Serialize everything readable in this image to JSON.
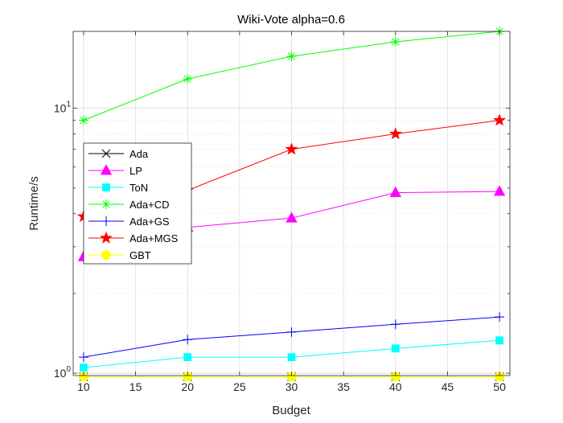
{
  "chart_data": {
    "type": "line",
    "title": "Wiki-Vote alpha=0.6",
    "xlabel": "Budget",
    "ylabel": "Runtime/s",
    "yscale": "log",
    "xlim": [
      9,
      51
    ],
    "ylim": [
      0.98,
      19.5
    ],
    "x": [
      10,
      20,
      30,
      40,
      50
    ],
    "xticks": [
      10,
      15,
      20,
      25,
      30,
      35,
      40,
      45,
      50
    ],
    "xtick_labels": [
      "10",
      "15",
      "20",
      "25",
      "30",
      "35",
      "40",
      "45",
      "50"
    ],
    "yticks": [
      1,
      10
    ],
    "ytick_base": "10",
    "ytick_exponents": [
      "0",
      "1"
    ],
    "grid": true,
    "legend_position": "left",
    "series": [
      {
        "name": "Ada",
        "color": "#000000",
        "marker": "x",
        "values": [
          0.97,
          0.97,
          0.97,
          0.97,
          0.97
        ]
      },
      {
        "name": "LP",
        "color": "#ff00ff",
        "marker": "triangle",
        "values": [
          2.75,
          3.55,
          3.85,
          4.8,
          4.85
        ]
      },
      {
        "name": "ToN",
        "color": "#00ffff",
        "marker": "square",
        "values": [
          1.05,
          1.15,
          1.15,
          1.24,
          1.33
        ]
      },
      {
        "name": "Ada+CD",
        "color": "#00ff00",
        "marker": "asterisk",
        "values": [
          9.0,
          12.9,
          15.7,
          17.8,
          19.5
        ]
      },
      {
        "name": "Ada+GS",
        "color": "#0000ff",
        "marker": "plus",
        "values": [
          1.15,
          1.34,
          1.43,
          1.53,
          1.63
        ]
      },
      {
        "name": "Ada+MGS",
        "color": "#ff0000",
        "marker": "star",
        "values": [
          3.9,
          4.9,
          7.0,
          8.0,
          9.0
        ]
      },
      {
        "name": "GBT",
        "color": "#ffff00",
        "marker": "circle",
        "values": [
          0.97,
          0.97,
          0.97,
          0.97,
          0.97
        ]
      }
    ]
  }
}
